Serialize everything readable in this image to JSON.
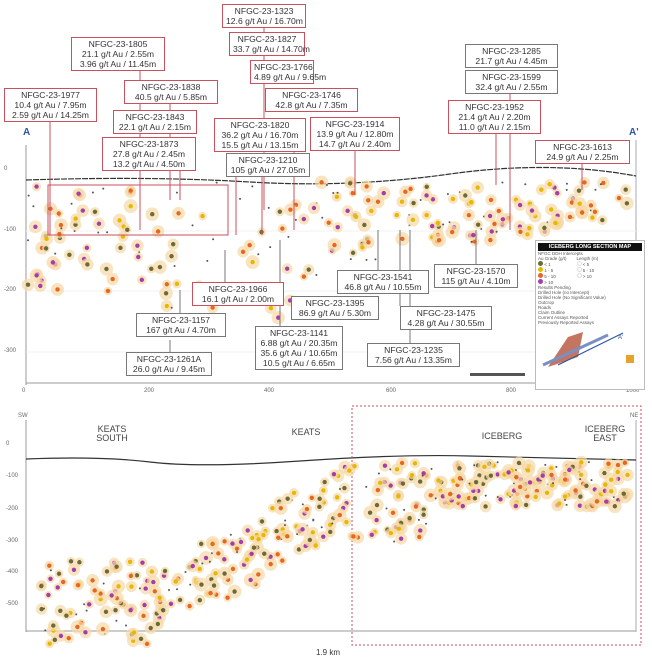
{
  "top_section": {
    "start_label": "A",
    "end_label": "A'",
    "y_ticks": [
      "0",
      "-100",
      "-200",
      "-300"
    ],
    "x_ticks": [
      "0",
      "200",
      "400",
      "600",
      "800",
      "1000"
    ],
    "callouts": [
      {
        "hole": "NFGC-23-1323",
        "lines": [
          "12.6 g/t Au / 16.70m"
        ],
        "style": "red"
      },
      {
        "hole": "NFGC-23-1827",
        "lines": [
          "33.7 g/t Au / 14.70m"
        ],
        "style": "red"
      },
      {
        "hole": "NFGC-23-1805",
        "lines": [
          "21.1 g/t Au / 2.55m",
          "3.96 g/t Au / 11.45m"
        ],
        "style": "red"
      },
      {
        "hole": "NFGC-23-1766",
        "lines": [
          "4.89 g/t Au / 9.65m"
        ],
        "style": "red"
      },
      {
        "hole": "NFGC-23-1977",
        "lines": [
          "10.4 g/t Au / 7.95m",
          "2.59 g/t Au / 14.25m"
        ],
        "style": "red"
      },
      {
        "hole": "NFGC-23-1838",
        "lines": [
          "40.5 g/t Au / 5.85m"
        ],
        "style": "red"
      },
      {
        "hole": "NFGC-23-1746",
        "lines": [
          "42.8 g/t Au / 7.35m"
        ],
        "style": "red"
      },
      {
        "hole": "NFGC-23-1843",
        "lines": [
          "22.1 g/t Au / 2.15m"
        ],
        "style": "red"
      },
      {
        "hole": "NFGC-23-1820",
        "lines": [
          "36.2 g/t Au / 16.70m",
          "15.5 g/t Au / 13.15m"
        ],
        "style": "red"
      },
      {
        "hole": "NFGC-23-1914",
        "lines": [
          "13.9 g/t Au / 12.80m",
          "14.7 g/t Au / 2.40m"
        ],
        "style": "red"
      },
      {
        "hole": "NFGC-23-1873",
        "lines": [
          "27.8 g/t Au / 2.45m",
          "13.2 g/t Au / 4.50m"
        ],
        "style": "red"
      },
      {
        "hole": "NFGC-23-1210",
        "lines": [
          "105 g/t Au / 27.05m"
        ],
        "style": "gray"
      },
      {
        "hole": "NFGC-23-1285",
        "lines": [
          "21.7 g/t Au / 4.45m"
        ],
        "style": "gray"
      },
      {
        "hole": "NFGC-23-1599",
        "lines": [
          "32.4 g/t Au / 2.55m"
        ],
        "style": "gray"
      },
      {
        "hole": "NFGC-23-1952",
        "lines": [
          "21.4 g/t Au / 2.20m",
          "11.0 g/t Au / 2.15m"
        ],
        "style": "red"
      },
      {
        "hole": "NFGC-23-1613",
        "lines": [
          "24.9 g/t Au / 2.25m"
        ],
        "style": "red"
      },
      {
        "hole": "NFGC-23-1966",
        "lines": [
          "16.1 g/t Au / 2.00m"
        ],
        "style": "red"
      },
      {
        "hole": "NFGC-23-1541",
        "lines": [
          "46.8 g/t Au / 10.55m"
        ],
        "style": "gray"
      },
      {
        "hole": "NFGC-23-1570",
        "lines": [
          "115 g/t Au / 4.10m"
        ],
        "style": "gray"
      },
      {
        "hole": "NFGC-23-1395",
        "lines": [
          "86.9 g/t Au / 5.30m"
        ],
        "style": "gray"
      },
      {
        "hole": "NFGC-23-1475",
        "lines": [
          "4.28 g/t Au / 30.55m"
        ],
        "style": "gray"
      },
      {
        "hole": "NFGC-23-1157",
        "lines": [
          "167 g/t  Au / 4.70m"
        ],
        "style": "gray"
      },
      {
        "hole": "NFGC-23-1141",
        "lines": [
          "6.88 g/t Au / 20.35m",
          "35.6 g/t Au / 10.65m",
          "10.5 g/t Au / 6.65m"
        ],
        "style": "gray"
      },
      {
        "hole": "NFGC-23-1235",
        "lines": [
          "7.56 g/t Au / 13.35m"
        ],
        "style": "gray"
      },
      {
        "hole": "NFGC-23-1261A",
        "lines": [
          "26.0 g/t Au / 9.45m"
        ],
        "style": "gray"
      }
    ]
  },
  "legend": {
    "title": "ICEBERG LONG SECTION MAP",
    "subtitle": "NFGC DDH Intercepts",
    "grade_header": "Au Grade (g/t)",
    "length_header": "Length (m)",
    "grades": [
      "< 1",
      "1 - 5",
      "5 - 10",
      "> 10"
    ],
    "lengths": [
      "< 5",
      "5 - 10",
      "> 10"
    ],
    "items": [
      "Results Pending",
      "Drilled Hole (no Intercept)",
      "Drilled Hole (No Significant Value)",
      "Outcrop",
      "Roads",
      "Claim Outline",
      "Current Assays Reported",
      "Previously Reported Assays"
    ],
    "grade_colors": [
      "#6b6b3a",
      "#e6b800",
      "#e8661f",
      "#a63ea8"
    ]
  },
  "bottom_section": {
    "sw_label": "SW",
    "ne_label": "NE",
    "regions": [
      "KEATS\nSOUTH",
      "KEATS",
      "ICEBERG",
      "ICEBERG\nEAST"
    ],
    "y_ticks": [
      "0",
      "-100",
      "-200",
      "-300",
      "-400",
      "-500"
    ],
    "scale_label": "1.9 km"
  }
}
